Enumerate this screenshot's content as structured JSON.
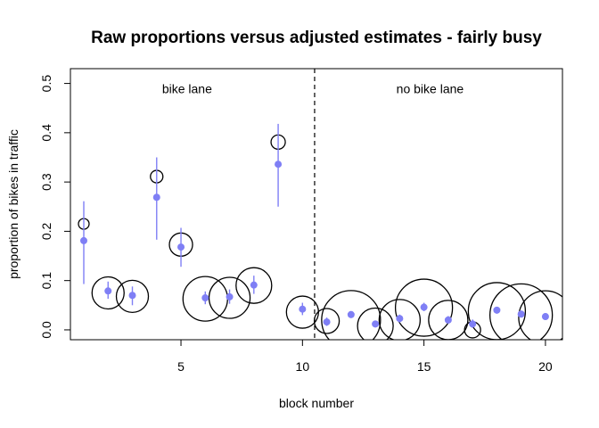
{
  "chart_data": {
    "type": "scatter",
    "title": "Raw proportions versus adjusted estimates - fairly busy",
    "xlabel": "block number",
    "ylabel": "proportion of bikes in traffic",
    "xlim": [
      0.45,
      20.7
    ],
    "ylim": [
      -0.02,
      0.53
    ],
    "xticks": [
      5,
      10,
      15,
      20
    ],
    "yticks": [
      0.0,
      0.1,
      0.2,
      0.3,
      0.4,
      0.5
    ],
    "xtick_labels": [
      "5",
      "10",
      "15",
      "20"
    ],
    "ytick_labels": [
      "0.0",
      "0.1",
      "0.2",
      "0.3",
      "0.4",
      "0.5"
    ],
    "grid": false,
    "divider_x": 10.5,
    "region_labels": [
      {
        "text": "bike lane",
        "x": 5.25,
        "y": 0.48
      },
      {
        "text": "no bike lane",
        "x": 15.25,
        "y": 0.48
      }
    ],
    "colors": {
      "estimate": "#7f7ff5",
      "raw": "#000000",
      "divider": "#000000"
    },
    "series": [
      {
        "kind": "raw_proportion",
        "marker": "open-circle",
        "points": [
          {
            "x": 1,
            "y": 0.215,
            "r": 6
          },
          {
            "x": 2,
            "y": 0.075,
            "r": 18
          },
          {
            "x": 3,
            "y": 0.068,
            "r": 18
          },
          {
            "x": 4,
            "y": 0.311,
            "r": 7
          },
          {
            "x": 5,
            "y": 0.173,
            "r": 13
          },
          {
            "x": 6,
            "y": 0.063,
            "r": 25
          },
          {
            "x": 7,
            "y": 0.065,
            "r": 23
          },
          {
            "x": 8,
            "y": 0.09,
            "r": 20
          },
          {
            "x": 9,
            "y": 0.381,
            "r": 8
          },
          {
            "x": 10,
            "y": 0.036,
            "r": 18
          },
          {
            "x": 11,
            "y": 0.018,
            "r": 14
          },
          {
            "x": 12,
            "y": 0.02,
            "r": 33
          },
          {
            "x": 13,
            "y": 0.008,
            "r": 20
          },
          {
            "x": 14,
            "y": 0.02,
            "r": 23
          },
          {
            "x": 15,
            "y": 0.045,
            "r": 32
          },
          {
            "x": 16,
            "y": 0.02,
            "r": 22
          },
          {
            "x": 17,
            "y": 0.0,
            "r": 9
          },
          {
            "x": 18,
            "y": 0.038,
            "r": 32
          },
          {
            "x": 19,
            "y": 0.03,
            "r": 35
          },
          {
            "x": 20,
            "y": 0.025,
            "r": 30
          }
        ]
      },
      {
        "kind": "adjusted_estimate",
        "marker": "filled-dot-with-interval",
        "points": [
          {
            "x": 1,
            "y": 0.181,
            "lo": 0.093,
            "hi": 0.261
          },
          {
            "x": 2,
            "y": 0.079,
            "lo": 0.063,
            "hi": 0.098
          },
          {
            "x": 3,
            "y": 0.07,
            "lo": 0.05,
            "hi": 0.088
          },
          {
            "x": 4,
            "y": 0.269,
            "lo": 0.183,
            "hi": 0.35
          },
          {
            "x": 5,
            "y": 0.168,
            "lo": 0.128,
            "hi": 0.207
          },
          {
            "x": 6,
            "y": 0.065,
            "lo": 0.052,
            "hi": 0.078
          },
          {
            "x": 7,
            "y": 0.067,
            "lo": 0.053,
            "hi": 0.082
          },
          {
            "x": 8,
            "y": 0.091,
            "lo": 0.073,
            "hi": 0.11
          },
          {
            "x": 9,
            "y": 0.336,
            "lo": 0.25,
            "hi": 0.418
          },
          {
            "x": 10,
            "y": 0.042,
            "lo": 0.03,
            "hi": 0.055
          },
          {
            "x": 11,
            "y": 0.016,
            "lo": 0.008,
            "hi": 0.025
          },
          {
            "x": 12,
            "y": 0.031,
            "lo": 0.024,
            "hi": 0.038
          },
          {
            "x": 13,
            "y": 0.012,
            "lo": 0.005,
            "hi": 0.019
          },
          {
            "x": 14,
            "y": 0.023,
            "lo": 0.015,
            "hi": 0.031
          },
          {
            "x": 15,
            "y": 0.046,
            "lo": 0.038,
            "hi": 0.055
          },
          {
            "x": 16,
            "y": 0.02,
            "lo": 0.013,
            "hi": 0.028
          },
          {
            "x": 17,
            "y": 0.012,
            "lo": 0.004,
            "hi": 0.021
          },
          {
            "x": 18,
            "y": 0.04,
            "lo": 0.033,
            "hi": 0.047
          },
          {
            "x": 19,
            "y": 0.032,
            "lo": 0.025,
            "hi": 0.039
          },
          {
            "x": 20,
            "y": 0.027,
            "lo": 0.02,
            "hi": 0.034
          }
        ]
      }
    ]
  }
}
